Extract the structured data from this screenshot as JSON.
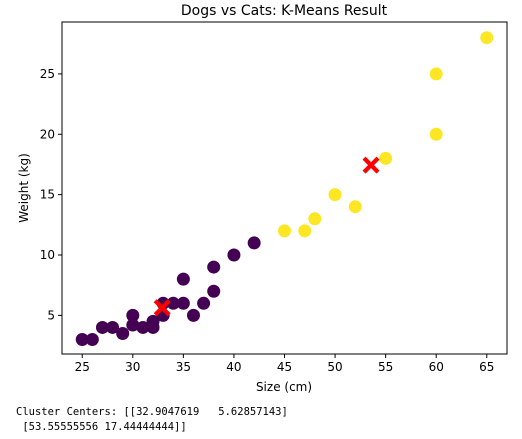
{
  "chart_data": {
    "type": "scatter",
    "title": "Dogs vs Cats: K-Means Result",
    "xlabel": "Size (cm)",
    "ylabel": "Weight (kg)",
    "xlim": [
      23.0,
      67.0
    ],
    "ylim": [
      1.8,
      29.3
    ],
    "xticks": [
      25,
      30,
      35,
      40,
      45,
      50,
      55,
      60,
      65
    ],
    "yticks": [
      5,
      10,
      15,
      20,
      25
    ],
    "grid": false,
    "series": [
      {
        "color": "#440154",
        "points": [
          [
            25,
            3
          ],
          [
            26,
            3
          ],
          [
            27,
            4
          ],
          [
            28,
            4
          ],
          [
            29,
            3.5
          ],
          [
            30,
            4.2
          ],
          [
            30,
            5
          ],
          [
            31,
            4
          ],
          [
            32,
            4
          ],
          [
            32,
            4.5
          ],
          [
            33,
            5
          ],
          [
            33,
            6
          ],
          [
            34,
            6
          ],
          [
            35,
            6
          ],
          [
            35,
            8
          ],
          [
            36,
            5
          ],
          [
            37,
            6
          ],
          [
            38,
            7
          ],
          [
            38,
            9
          ],
          [
            40,
            10
          ],
          [
            42,
            11
          ]
        ]
      },
      {
        "color": "#fde725",
        "points": [
          [
            45,
            12
          ],
          [
            47,
            12
          ],
          [
            48,
            13
          ],
          [
            50,
            15
          ],
          [
            52,
            14
          ],
          [
            55,
            18
          ],
          [
            60,
            20
          ],
          [
            60,
            25
          ],
          [
            65,
            28
          ]
        ]
      }
    ],
    "centers": {
      "color": "#ff0000",
      "points": [
        [
          32.9047619,
          5.62857143
        ],
        [
          53.55555556,
          17.44444444
        ]
      ]
    }
  },
  "console": {
    "line1": "Cluster Centers: [[32.9047619   5.62857143]",
    "line2": " [53.55555556 17.44444444]]"
  }
}
